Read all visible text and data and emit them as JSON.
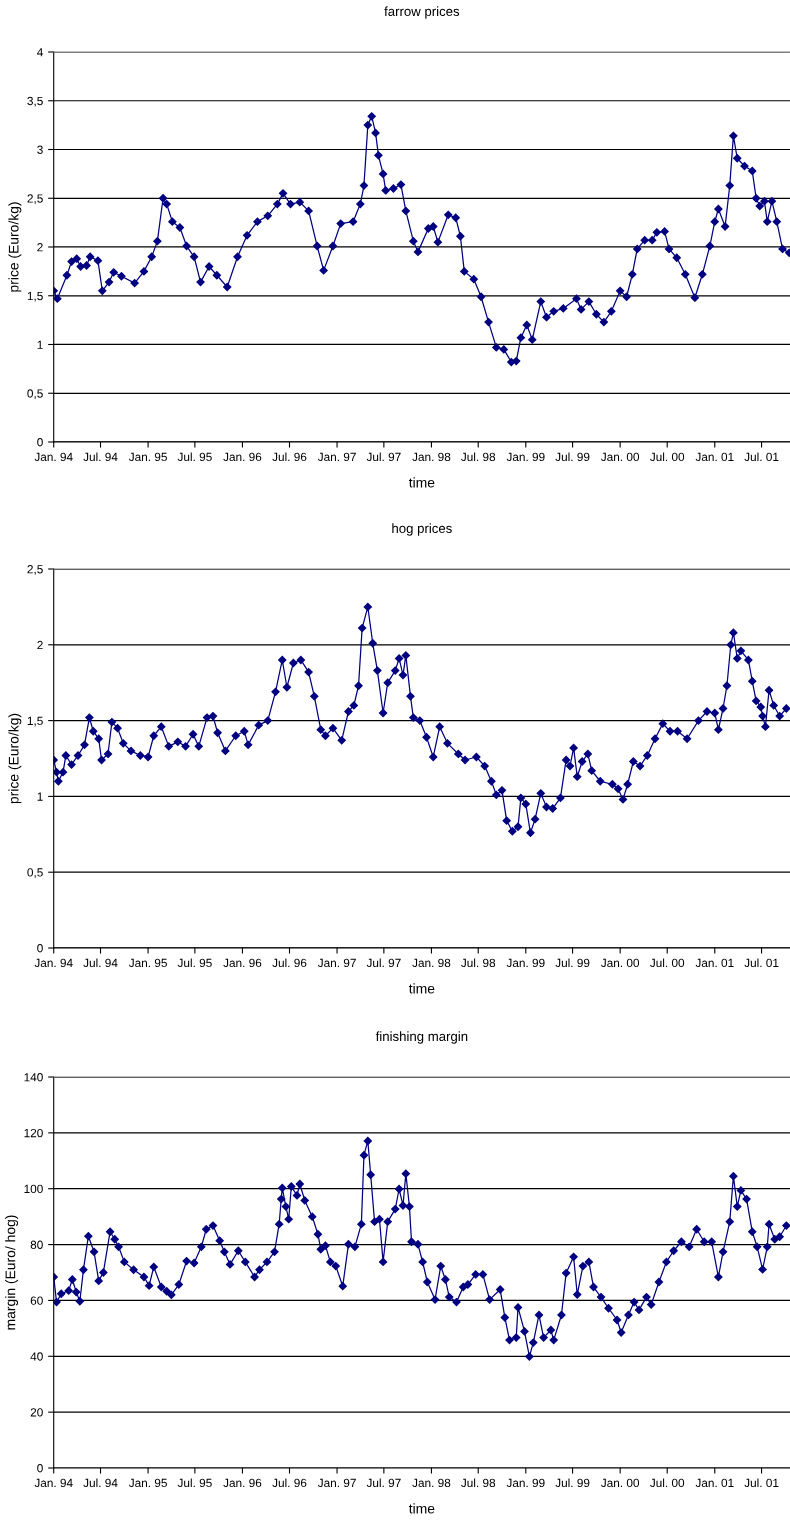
{
  "chart_data": [
    {
      "type": "line",
      "title": "farrow prices",
      "xlabel": "time",
      "ylabel": "price (Euro/kg)",
      "marker": "diamond",
      "line_style": "solid",
      "grid": "y",
      "xlim": [
        "1994-01-01",
        "2001-10-19"
      ],
      "xticks": [
        {
          "value": "1994-01-01",
          "label": "Jan. 94"
        },
        {
          "value": "1994-07-01",
          "label": "Jul. 94"
        },
        {
          "value": "1995-01-01",
          "label": "Jan. 95"
        },
        {
          "value": "1995-07-01",
          "label": "Jul. 95"
        },
        {
          "value": "1996-01-01",
          "label": "Jan. 96"
        },
        {
          "value": "1996-07-01",
          "label": "Jul. 96"
        },
        {
          "value": "1997-01-01",
          "label": "Jan. 97"
        },
        {
          "value": "1997-07-01",
          "label": "Jul. 97"
        },
        {
          "value": "1998-01-01",
          "label": "Jan. 98"
        },
        {
          "value": "1998-07-01",
          "label": "Jul. 98"
        },
        {
          "value": "1999-01-01",
          "label": "Jan. 99"
        },
        {
          "value": "1999-07-01",
          "label": "Jul. 99"
        },
        {
          "value": "2000-01-01",
          "label": "Jan. 00"
        },
        {
          "value": "2000-07-01",
          "label": "Jul. 00"
        },
        {
          "value": "2001-01-01",
          "label": "Jan. 01"
        },
        {
          "value": "2001-07-01",
          "label": "Jul. 01"
        }
      ],
      "ylim": [
        0,
        4
      ],
      "yticks": [
        0,
        {
          "value": 0.5,
          "label": "0,5"
        },
        1,
        {
          "value": 1.5,
          "label": "1,5"
        },
        2,
        {
          "value": 2.5,
          "label": "2,5"
        },
        3,
        {
          "value": 3.5,
          "label": "3,5"
        },
        4
      ],
      "series": [
        {
          "color": "#000080",
          "x": [
            "1994-01-01",
            "1994-01-15",
            "1994-02-21",
            "1994-03-11",
            "1994-03-31",
            "1994-04-15",
            "1994-05-08",
            "1994-05-22",
            "1994-06-21",
            "1994-07-08",
            "1994-08-03",
            "1994-08-21",
            "1994-09-20",
            "1994-11-10",
            "1994-12-16",
            "1995-01-15",
            "1995-02-06",
            "1995-02-28",
            "1995-03-14",
            "1995-04-05",
            "1995-05-04",
            "1995-05-30",
            "1995-06-28",
            "1995-07-23",
            "1995-08-25",
            "1995-09-24",
            "1995-11-03",
            "1995-12-13",
            "1996-01-19",
            "1996-02-28",
            "1996-04-08",
            "1996-05-15",
            "1996-06-06",
            "1996-07-05",
            "1996-08-10",
            "1996-09-13",
            "1996-10-16",
            "1996-11-10",
            "1996-12-16",
            "1997-01-15",
            "1997-03-04",
            "1997-04-01",
            "1997-04-15",
            "1997-04-30",
            "1997-05-15",
            "1997-05-30",
            "1997-06-10",
            "1997-06-28",
            "1997-07-08",
            "1997-08-07",
            "1997-09-05",
            "1997-09-24",
            "1997-10-23",
            "1997-11-10",
            "1997-12-20",
            "1998-01-08",
            "1998-01-26",
            "1998-03-07",
            "1998-04-05",
            "1998-04-23",
            "1998-05-08",
            "1998-06-14",
            "1998-07-12",
            "1998-08-10",
            "1998-09-09",
            "1998-10-08",
            "1998-11-06",
            "1998-11-25",
            "1998-12-13",
            "1999-01-05",
            "1999-01-26",
            "1999-02-28",
            "1999-03-22",
            "1999-04-19",
            "1999-05-26",
            "1999-07-16",
            "1999-08-03",
            "1999-09-02",
            "1999-10-01",
            "1999-10-30",
            "1999-11-28",
            "2000-01-01",
            "2000-01-26",
            "2000-02-17",
            "2000-03-07",
            "2000-04-05",
            "2000-05-04",
            "2000-05-22",
            "2000-06-21",
            "2000-07-08",
            "2000-08-07",
            "2000-09-09",
            "2000-10-16",
            "2000-11-14",
            "2000-12-13",
            "2001-01-01",
            "2001-01-15",
            "2001-02-10",
            "2001-02-28",
            "2001-03-14",
            "2001-03-29",
            "2001-04-26",
            "2001-05-26",
            "2001-06-10",
            "2001-06-24",
            "2001-07-12",
            "2001-07-23",
            "2001-08-10",
            "2001-08-29",
            "2001-09-20",
            "2001-10-16"
          ],
          "values": [
            1.55,
            1.47,
            1.71,
            1.85,
            1.88,
            1.8,
            1.81,
            1.9,
            1.86,
            1.55,
            1.64,
            1.74,
            1.7,
            1.63,
            1.75,
            1.9,
            2.06,
            2.5,
            2.44,
            2.26,
            2.2,
            2.01,
            1.9,
            1.64,
            1.8,
            1.71,
            1.59,
            1.9,
            2.12,
            2.26,
            2.32,
            2.44,
            2.55,
            2.44,
            2.46,
            2.37,
            2.01,
            1.76,
            2.01,
            2.24,
            2.26,
            2.44,
            2.63,
            3.25,
            3.34,
            3.17,
            2.94,
            2.75,
            2.58,
            2.6,
            2.64,
            2.37,
            2.06,
            1.95,
            2.19,
            2.21,
            2.05,
            2.33,
            2.3,
            2.11,
            1.75,
            1.67,
            1.49,
            1.23,
            0.97,
            0.95,
            0.82,
            0.83,
            1.07,
            1.2,
            1.05,
            1.44,
            1.28,
            1.34,
            1.37,
            1.47,
            1.36,
            1.44,
            1.31,
            1.23,
            1.34,
            1.55,
            1.49,
            1.72,
            1.98,
            2.07,
            2.07,
            2.15,
            2.16,
            1.98,
            1.89,
            1.72,
            1.48,
            1.72,
            2.01,
            2.26,
            2.39,
            2.21,
            2.63,
            3.14,
            2.91,
            2.83,
            2.78,
            2.5,
            2.42,
            2.47,
            2.26,
            2.47,
            2.26,
            1.98,
            1.94
          ]
        }
      ]
    },
    {
      "type": "line",
      "title": "hog prices",
      "xlabel": "time",
      "ylabel": "price (Euro/kg)",
      "marker": "diamond",
      "line_style": "solid",
      "grid": "y",
      "xlim": [
        "1994-01-01",
        "2001-10-19"
      ],
      "xticks": [
        {
          "value": "1994-01-01",
          "label": "Jan. 94"
        },
        {
          "value": "1994-07-01",
          "label": "Jul. 94"
        },
        {
          "value": "1995-01-01",
          "label": "Jan. 95"
        },
        {
          "value": "1995-07-01",
          "label": "Jul. 95"
        },
        {
          "value": "1996-01-01",
          "label": "Jan. 96"
        },
        {
          "value": "1996-07-01",
          "label": "Jul. 96"
        },
        {
          "value": "1997-01-01",
          "label": "Jan. 97"
        },
        {
          "value": "1997-07-01",
          "label": "Jul. 97"
        },
        {
          "value": "1998-01-01",
          "label": "Jan. 98"
        },
        {
          "value": "1998-07-01",
          "label": "Jul. 98"
        },
        {
          "value": "1999-01-01",
          "label": "Jan. 99"
        },
        {
          "value": "1999-07-01",
          "label": "Jul. 99"
        },
        {
          "value": "2000-01-01",
          "label": "Jan. 00"
        },
        {
          "value": "2000-07-01",
          "label": "Jul. 00"
        },
        {
          "value": "2001-01-01",
          "label": "Jan. 01"
        },
        {
          "value": "2001-07-01",
          "label": "Jul. 01"
        }
      ],
      "ylim": [
        0,
        2.5
      ],
      "yticks": [
        0,
        {
          "value": 0.5,
          "label": "0,5"
        },
        1,
        {
          "value": 1.5,
          "label": "1,5"
        },
        2,
        {
          "value": 2.5,
          "label": "2,5"
        }
      ],
      "series": [
        {
          "color": "#000080",
          "x": [
            "1994-01-01",
            "1994-01-12",
            "1994-01-19",
            "1994-02-06",
            "1994-02-17",
            "1994-03-11",
            "1994-04-05",
            "1994-04-30",
            "1994-05-19",
            "1994-06-03",
            "1994-06-24",
            "1994-07-05",
            "1994-07-30",
            "1994-08-14",
            "1994-09-05",
            "1994-09-27",
            "1994-10-27",
            "1994-12-02",
            "1995-01-01",
            "1995-01-23",
            "1995-02-21",
            "1995-03-22",
            "1995-04-26",
            "1995-05-26",
            "1995-06-24",
            "1995-07-16",
            "1995-08-17",
            "1995-09-09",
            "1995-09-27",
            "1995-10-27",
            "1995-12-06",
            "1996-01-08",
            "1996-01-23",
            "1996-03-04",
            "1996-04-08",
            "1996-05-08",
            "1996-06-03",
            "1996-06-21",
            "1996-07-16",
            "1996-08-14",
            "1996-09-13",
            "1996-10-05",
            "1996-10-30",
            "1996-11-17",
            "1996-12-16",
            "1997-01-19",
            "1997-02-14",
            "1997-03-07",
            "1997-03-25",
            "1997-04-08",
            "1997-04-30",
            "1997-05-19",
            "1997-06-06",
            "1997-06-28",
            "1997-07-16",
            "1997-08-14",
            "1997-08-29",
            "1997-09-13",
            "1997-09-24",
            "1997-10-12",
            "1997-10-23",
            "1997-11-17",
            "1997-12-13",
            "1998-01-08",
            "1998-02-02",
            "1998-03-04",
            "1998-04-15",
            "1998-05-11",
            "1998-06-24",
            "1998-07-26",
            "1998-08-21",
            "1998-09-09",
            "1998-10-01",
            "1998-10-19",
            "1998-11-10",
            "1998-12-02",
            "1998-12-13",
            "1999-01-01",
            "1999-01-19",
            "1999-02-06",
            "1999-02-28",
            "1999-03-22",
            "1999-04-15",
            "1999-05-15",
            "1999-06-06",
            "1999-06-21",
            "1999-07-05",
            "1999-07-19",
            "1999-08-07",
            "1999-08-29",
            "1999-09-13",
            "1999-10-16",
            "1999-12-02",
            "1999-12-24",
            "2000-01-12",
            "2000-01-30",
            "2000-02-21",
            "2000-03-18",
            "2000-04-15",
            "2000-05-15",
            "2000-06-14",
            "2000-07-12",
            "2000-08-10",
            "2000-09-16",
            "2000-10-30",
            "2000-12-02",
            "2001-01-01",
            "2001-01-15",
            "2001-02-02",
            "2001-02-17",
            "2001-03-04",
            "2001-03-14",
            "2001-03-29",
            "2001-04-12",
            "2001-05-11",
            "2001-05-26",
            "2001-06-10",
            "2001-06-28",
            "2001-07-05",
            "2001-07-16",
            "2001-07-30",
            "2001-08-17",
            "2001-09-09",
            "2001-10-05"
          ],
          "values": [
            1.24,
            1.16,
            1.1,
            1.16,
            1.27,
            1.21,
            1.27,
            1.34,
            1.52,
            1.43,
            1.38,
            1.24,
            1.28,
            1.49,
            1.45,
            1.35,
            1.3,
            1.27,
            1.26,
            1.4,
            1.46,
            1.33,
            1.36,
            1.33,
            1.41,
            1.33,
            1.52,
            1.53,
            1.42,
            1.3,
            1.4,
            1.43,
            1.34,
            1.47,
            1.5,
            1.69,
            1.9,
            1.72,
            1.88,
            1.9,
            1.82,
            1.66,
            1.44,
            1.4,
            1.45,
            1.37,
            1.56,
            1.6,
            1.73,
            2.11,
            2.25,
            2.01,
            1.83,
            1.55,
            1.75,
            1.83,
            1.91,
            1.8,
            1.93,
            1.66,
            1.52,
            1.5,
            1.39,
            1.26,
            1.46,
            1.35,
            1.28,
            1.24,
            1.26,
            1.2,
            1.1,
            1.01,
            1.04,
            0.84,
            0.77,
            0.8,
            0.99,
            0.95,
            0.76,
            0.85,
            1.02,
            0.93,
            0.92,
            0.99,
            1.24,
            1.2,
            1.32,
            1.13,
            1.23,
            1.28,
            1.17,
            1.1,
            1.08,
            1.05,
            0.98,
            1.08,
            1.23,
            1.2,
            1.27,
            1.38,
            1.48,
            1.43,
            1.43,
            1.38,
            1.5,
            1.56,
            1.55,
            1.44,
            1.58,
            1.73,
            2.0,
            2.08,
            1.91,
            1.96,
            1.9,
            1.76,
            1.63,
            1.59,
            1.53,
            1.46,
            1.7,
            1.6,
            1.53,
            1.58
          ]
        }
      ]
    },
    {
      "type": "line",
      "title": "finishing margin",
      "xlabel": "time",
      "ylabel": "margin (Euro/ hog)",
      "marker": "diamond",
      "line_style": "solid",
      "grid": "y",
      "xlim": [
        "1994-01-01",
        "2001-10-19"
      ],
      "xticks": [
        {
          "value": "1994-01-01",
          "label": "Jan. 94"
        },
        {
          "value": "1994-07-01",
          "label": "Jul. 94"
        },
        {
          "value": "1995-01-01",
          "label": "Jan. 95"
        },
        {
          "value": "1995-07-01",
          "label": "Jul. 95"
        },
        {
          "value": "1996-01-01",
          "label": "Jan. 96"
        },
        {
          "value": "1996-07-01",
          "label": "Jul. 96"
        },
        {
          "value": "1997-01-01",
          "label": "Jan. 97"
        },
        {
          "value": "1997-07-01",
          "label": "Jul. 97"
        },
        {
          "value": "1998-01-01",
          "label": "Jan. 98"
        },
        {
          "value": "1998-07-01",
          "label": "Jul. 98"
        },
        {
          "value": "1999-01-01",
          "label": "Jan. 99"
        },
        {
          "value": "1999-07-01",
          "label": "Jul. 99"
        },
        {
          "value": "2000-01-01",
          "label": "Jan. 00"
        },
        {
          "value": "2000-07-01",
          "label": "Jul. 00"
        },
        {
          "value": "2001-01-01",
          "label": "Jan. 01"
        },
        {
          "value": "2001-07-01",
          "label": "Jul. 01"
        }
      ],
      "ylim": [
        0,
        140
      ],
      "yticks": [
        0,
        20,
        40,
        60,
        80,
        100,
        120,
        140
      ],
      "series": [
        {
          "color": "#000080",
          "x": [
            "1994-01-01",
            "1994-01-12",
            "1994-01-30",
            "1994-02-28",
            "1994-03-14",
            "1994-03-29",
            "1994-04-12",
            "1994-04-26",
            "1994-05-15",
            "1994-06-06",
            "1994-06-24",
            "1994-07-12",
            "1994-08-07",
            "1994-08-25",
            "1994-09-09",
            "1994-10-01",
            "1994-11-06",
            "1994-12-16",
            "1995-01-05",
            "1995-01-23",
            "1995-02-21",
            "1995-03-14",
            "1995-04-01",
            "1995-04-30",
            "1995-05-30",
            "1995-06-28",
            "1995-07-26",
            "1995-08-14",
            "1995-09-09",
            "1995-10-05",
            "1995-10-23",
            "1995-11-14",
            "1995-12-16",
            "1996-01-12",
            "1996-02-17",
            "1996-03-07",
            "1996-04-05",
            "1996-05-04",
            "1996-05-22",
            "1996-05-30",
            "1996-06-03",
            "1996-06-17",
            "1996-06-28",
            "1996-07-08",
            "1996-07-30",
            "1996-08-10",
            "1996-08-29",
            "1996-09-27",
            "1996-10-19",
            "1996-10-30",
            "1996-11-17",
            "1996-12-06",
            "1996-12-27",
            "1997-01-23",
            "1997-02-14",
            "1997-03-11",
            "1997-04-05",
            "1997-04-15",
            "1997-04-30",
            "1997-05-11",
            "1997-05-26",
            "1997-06-14",
            "1997-06-28",
            "1997-07-16",
            "1997-08-14",
            "1997-08-29",
            "1997-09-13",
            "1997-09-24",
            "1997-10-08",
            "1997-10-16",
            "1997-11-10",
            "1997-11-28",
            "1997-12-16",
            "1998-01-15",
            "1998-02-06",
            "1998-02-24",
            "1998-03-11",
            "1998-04-08",
            "1998-05-04",
            "1998-05-22",
            "1998-06-21",
            "1998-07-19",
            "1998-08-14",
            "1998-09-24",
            "1998-10-12",
            "1998-10-30",
            "1998-11-25",
            "1998-12-02",
            "1998-12-27",
            "1999-01-15",
            "1999-01-30",
            "1999-02-21",
            "1999-03-11",
            "1999-04-08",
            "1999-04-19",
            "1999-05-19",
            "1999-06-06",
            "1999-07-05",
            "1999-07-19",
            "1999-08-10",
            "1999-09-02",
            "1999-09-20",
            "1999-10-19",
            "1999-11-17",
            "1999-12-20",
            "2000-01-05",
            "2000-02-02",
            "2000-02-24",
            "2000-03-14",
            "2000-04-12",
            "2000-04-30",
            "2000-05-30",
            "2000-06-28",
            "2000-07-26",
            "2000-08-25",
            "2000-09-24",
            "2000-10-23",
            "2000-11-21",
            "2000-12-20",
            "2001-01-15",
            "2001-02-02",
            "2001-02-28",
            "2001-03-14",
            "2001-03-29",
            "2001-04-12",
            "2001-05-04",
            "2001-05-26",
            "2001-06-14",
            "2001-07-05",
            "2001-07-23",
            "2001-07-30",
            "2001-08-21",
            "2001-09-09",
            "2001-10-05"
          ],
          "values": [
            68.4,
            59.4,
            62.4,
            63.5,
            67.5,
            63,
            59.7,
            71,
            83,
            77.4,
            67,
            70,
            84.6,
            81.9,
            79.2,
            73.8,
            71,
            68.4,
            65.3,
            72,
            64.8,
            63.3,
            62,
            65.7,
            74.1,
            73.4,
            79.2,
            85.5,
            86.8,
            81.4,
            77.4,
            72.9,
            77.8,
            73.8,
            68.4,
            71,
            73.8,
            77.4,
            87.3,
            96.3,
            100.3,
            93.6,
            89.1,
            100.8,
            97.6,
            101.7,
            95.8,
            90,
            83.7,
            78.3,
            79.6,
            73.8,
            72.3,
            65.1,
            80.1,
            79.2,
            87.3,
            112,
            117.1,
            105,
            88.2,
            89.1,
            73.8,
            88.2,
            92.7,
            99.9,
            94,
            105.4,
            93.6,
            81,
            80.1,
            73.8,
            66.6,
            60.3,
            72.3,
            67.5,
            61.2,
            59.4,
            64.8,
            65.7,
            69.3,
            69.3,
            60.3,
            63.9,
            53.9,
            45.8,
            46.7,
            57.5,
            48.9,
            39.9,
            44.9,
            54.8,
            46.7,
            49.4,
            45.8,
            54.8,
            69.8,
            75.6,
            62.1,
            72.3,
            73.8,
            64.8,
            61.2,
            57.2,
            53,
            48.5,
            54.8,
            59.4,
            56.6,
            61.2,
            58.5,
            66.6,
            73.8,
            77.8,
            81,
            79.2,
            85.5,
            81,
            81,
            68.4,
            77.4,
            88.2,
            104.5,
            93.6,
            99.4,
            96.3,
            84.6,
            79.2,
            71.1,
            79.2,
            87.3,
            81.9,
            82.8,
            86.8
          ]
        }
      ]
    }
  ]
}
